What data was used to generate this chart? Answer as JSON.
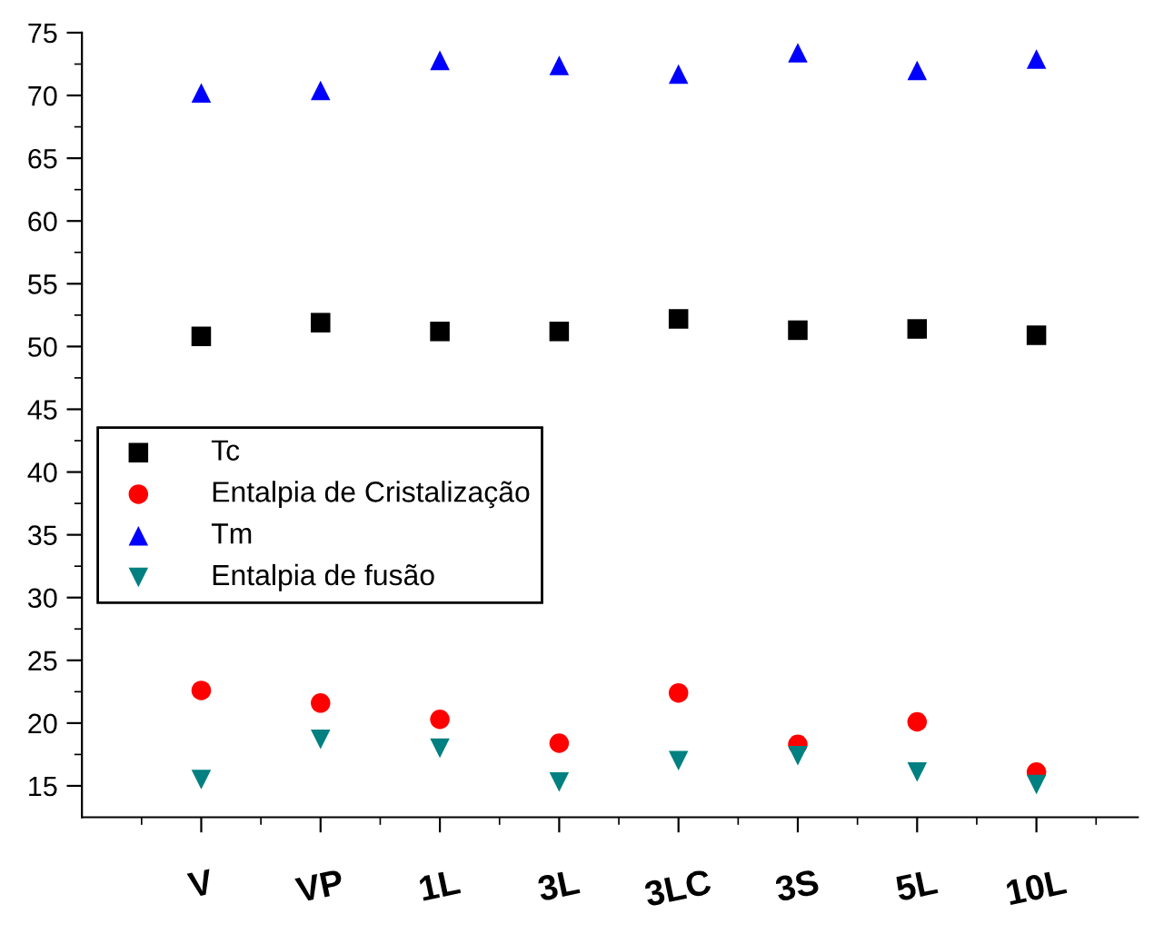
{
  "chart_data": {
    "type": "scatter",
    "categories": [
      "V",
      "VP",
      "1L",
      "3L",
      "3LC",
      "3S",
      "5L",
      "10L"
    ],
    "series": [
      {
        "name": "Tc",
        "color": "#000000",
        "marker": "square",
        "values": [
          50.8,
          51.9,
          51.2,
          51.2,
          52.2,
          51.3,
          51.4,
          50.9
        ]
      },
      {
        "name": "Entalpia de Cristalização",
        "color": "#ff0000",
        "marker": "circle",
        "values": [
          22.6,
          21.6,
          20.3,
          18.4,
          22.4,
          18.3,
          20.1,
          16.1
        ]
      },
      {
        "name": "Tm",
        "color": "#0000ff",
        "marker": "triangle",
        "values": [
          70.2,
          70.4,
          72.8,
          72.4,
          71.7,
          73.4,
          72.0,
          72.9
        ]
      },
      {
        "name": "Entalpia de fusão",
        "color": "#008080",
        "marker": "triangle_down",
        "values": [
          15.5,
          18.7,
          18.0,
          15.3,
          17.0,
          17.4,
          16.1,
          15.1
        ]
      }
    ],
    "ylim": [
      12.5,
      75
    ],
    "yticks": [
      15,
      20,
      25,
      30,
      35,
      40,
      45,
      50,
      55,
      60,
      65,
      70,
      75
    ],
    "grid": false,
    "legend": "left"
  }
}
